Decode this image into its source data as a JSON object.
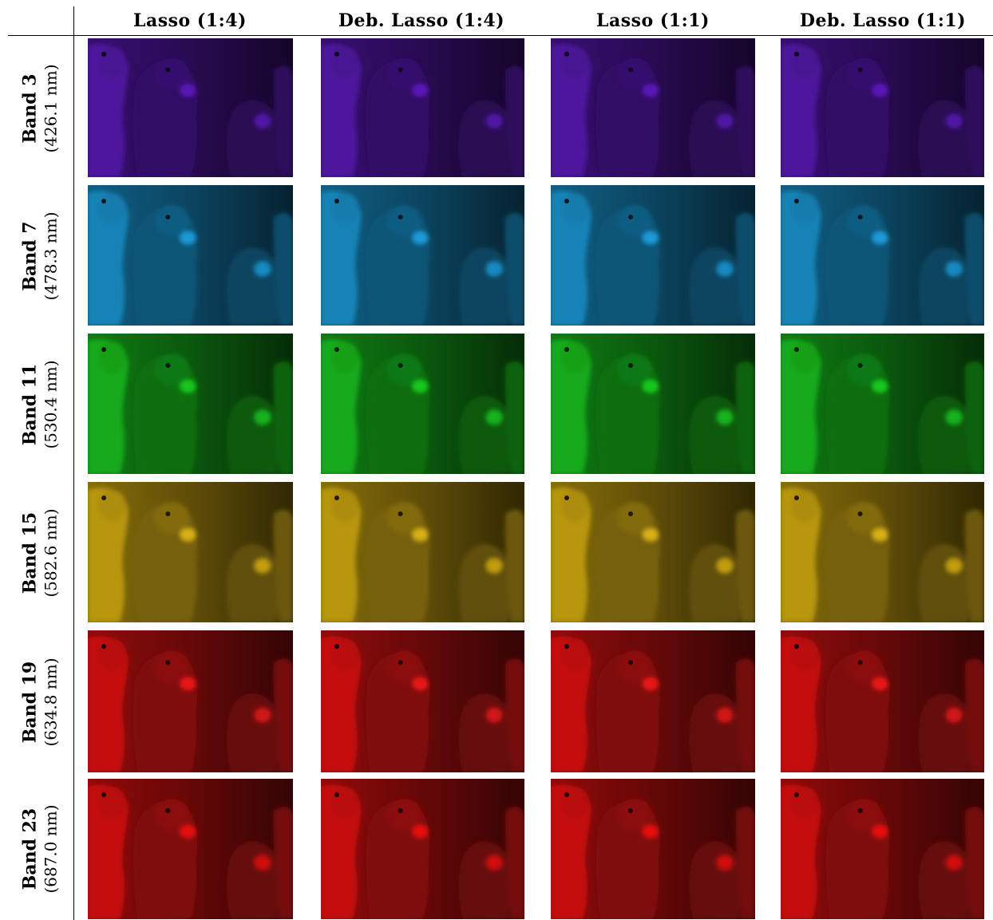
{
  "columns": [
    {
      "label": "Lasso (1:4)"
    },
    {
      "label": "Deb. Lasso (1:4)"
    },
    {
      "label": "Lasso (1:1)"
    },
    {
      "label": "Deb. Lasso (1:1)"
    }
  ],
  "rows": [
    {
      "band": "Band 3",
      "wavelength": "(426.1 nm)",
      "color": "#5a18b8"
    },
    {
      "band": "Band 7",
      "wavelength": "(478.3 nm)",
      "color": "#1a9ad8"
    },
    {
      "band": "Band 11",
      "wavelength": "(530.4 nm)",
      "color": "#18c81e"
    },
    {
      "band": "Band 15",
      "wavelength": "(582.6 nm)",
      "color": "#d8b012"
    },
    {
      "band": "Band 19",
      "wavelength": "(634.8 nm)",
      "color": "#e81414"
    },
    {
      "band": "Band 23",
      "wavelength": "(687.0 nm)",
      "color": "#e81010"
    }
  ]
}
